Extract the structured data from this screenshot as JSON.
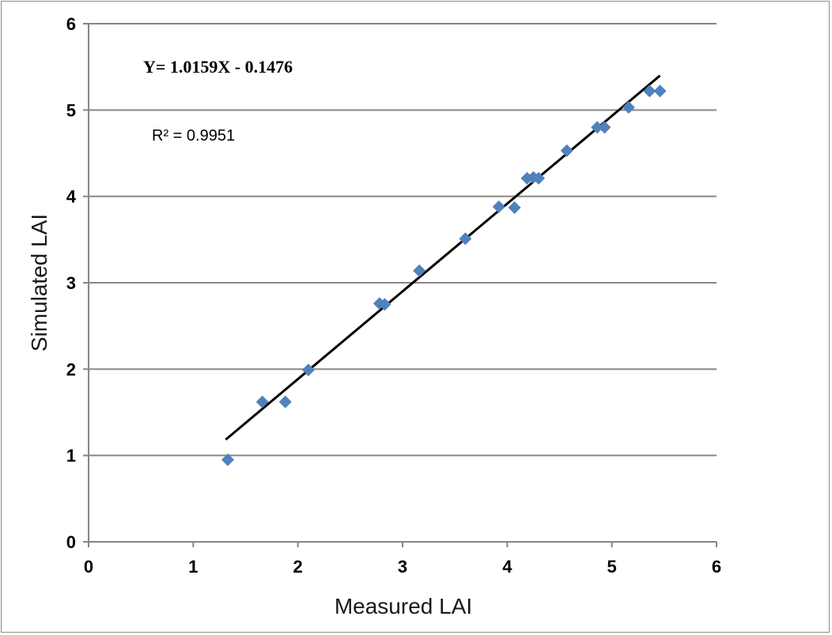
{
  "chart_data": {
    "type": "scatter",
    "title": "",
    "xlabel": "Measured LAI",
    "ylabel": "Simulated LAI",
    "xlim": [
      0,
      6
    ],
    "ylim": [
      0,
      6
    ],
    "x_ticks": [
      "0",
      "1",
      "2",
      "3",
      "4",
      "5",
      "6"
    ],
    "y_ticks": [
      "0",
      "1",
      "2",
      "3",
      "4",
      "5",
      "6"
    ],
    "grid": "horizontal",
    "legend": "none",
    "marker_color": "#4f81bd",
    "trendline_color": "#000000",
    "points": [
      {
        "x": 1.33,
        "y": 0.95
      },
      {
        "x": 1.66,
        "y": 1.62
      },
      {
        "x": 1.88,
        "y": 1.62
      },
      {
        "x": 2.1,
        "y": 1.99
      },
      {
        "x": 2.78,
        "y": 2.76
      },
      {
        "x": 2.83,
        "y": 2.75
      },
      {
        "x": 3.16,
        "y": 3.14
      },
      {
        "x": 3.6,
        "y": 3.51
      },
      {
        "x": 3.92,
        "y": 3.88
      },
      {
        "x": 4.07,
        "y": 3.87
      },
      {
        "x": 4.19,
        "y": 4.21
      },
      {
        "x": 4.25,
        "y": 4.22
      },
      {
        "x": 4.3,
        "y": 4.21
      },
      {
        "x": 4.57,
        "y": 4.53
      },
      {
        "x": 4.86,
        "y": 4.8
      },
      {
        "x": 4.93,
        "y": 4.8
      },
      {
        "x": 5.16,
        "y": 5.03
      },
      {
        "x": 5.36,
        "y": 5.22
      },
      {
        "x": 5.46,
        "y": 5.22
      }
    ],
    "trendline": {
      "slope": 1.0159,
      "intercept": -0.1476,
      "x_start": 1.31,
      "x_end": 5.46
    },
    "annotations": {
      "equation": "Y= 1.0159X - 0.1476",
      "r_squared": "R² = 0.9951"
    }
  }
}
